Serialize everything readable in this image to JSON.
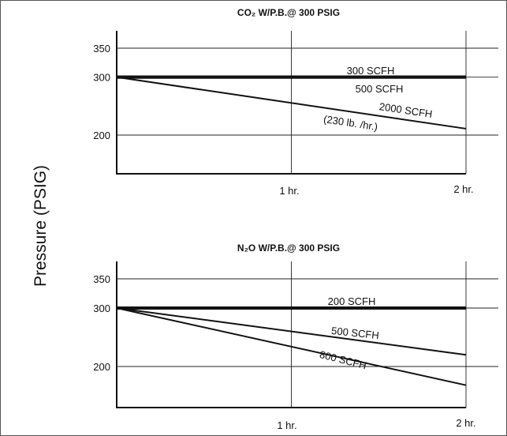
{
  "figure": {
    "ylabel": "Pressure (PSIG)"
  },
  "chart_data": [
    {
      "type": "line",
      "title": "CO₂ W/P.B.@ 300 PSIG",
      "xlabel": "",
      "ylabel": "Pressure (PSIG)",
      "x_unit": "hr",
      "xlim": [
        0,
        2.2
      ],
      "ylim": [
        150,
        370
      ],
      "x_ticks": [
        {
          "value": 1,
          "label": "1 hr."
        },
        {
          "value": 2,
          "label": "2 hr."
        }
      ],
      "y_ticks": [
        {
          "value": 350,
          "label": "350"
        },
        {
          "value": 300,
          "label": "300"
        },
        {
          "value": 200,
          "label": "200"
        }
      ],
      "grid": true,
      "series": [
        {
          "name": "300 SCFH",
          "x": [
            0,
            2
          ],
          "y": [
            300,
            300
          ],
          "style": "thick"
        },
        {
          "name": "500 SCFH",
          "x": [
            0,
            2
          ],
          "y": [
            300,
            300
          ],
          "style": "thick"
        },
        {
          "name": "2000 SCFH",
          "x": [
            0,
            2
          ],
          "y": [
            300,
            211
          ],
          "style": "normal"
        }
      ],
      "annotations": [
        "300 SCFH",
        "500 SCFH",
        "2000 SCFH",
        "(230 lb. /hr.)"
      ]
    },
    {
      "type": "line",
      "title": "N₂O W/P.B.@ 300 PSIG",
      "xlabel": "",
      "ylabel": "Pressure (PSIG)",
      "x_unit": "hr",
      "xlim": [
        0,
        2.2
      ],
      "ylim": [
        150,
        370
      ],
      "x_ticks": [
        {
          "value": 1,
          "label": "1 hr."
        },
        {
          "value": 2,
          "label": "2 hr."
        }
      ],
      "y_ticks": [
        {
          "value": 350,
          "label": "350"
        },
        {
          "value": 300,
          "label": "300"
        },
        {
          "value": 200,
          "label": "200"
        }
      ],
      "grid": true,
      "series": [
        {
          "name": "200 SCFH",
          "x": [
            0,
            2
          ],
          "y": [
            300,
            300
          ],
          "style": "thick"
        },
        {
          "name": "500 SCFH",
          "x": [
            0,
            2
          ],
          "y": [
            300,
            220
          ],
          "style": "normal"
        },
        {
          "name": "800 SCFH",
          "x": [
            0,
            2
          ],
          "y": [
            300,
            168
          ],
          "style": "normal"
        }
      ],
      "annotations": [
        "200 SCFH",
        "500 SCFH",
        "800 SCFH"
      ]
    }
  ]
}
